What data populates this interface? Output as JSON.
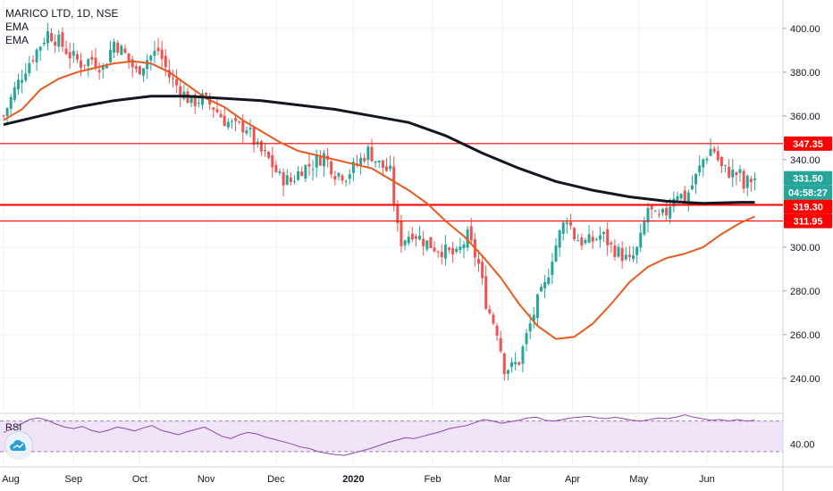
{
  "legend": {
    "symbol": "MARICO LTD, 1D, NSE",
    "ema1": "EMA",
    "ema2": "EMA"
  },
  "rsi_label": "RSI",
  "logo_icon": "tradingview-cloud-icon",
  "colors": {
    "up": "#26a69a",
    "down": "#ef5350",
    "ema_long": "#131722",
    "ema_short": "#e65c1e",
    "hline": "#ff0000",
    "rsi_line": "#8e44ad",
    "rsi_band": "#ead9f7"
  },
  "chart_data": [
    {
      "type": "candlestick",
      "title": "MARICO LTD, 1D, NSE",
      "x_tick_labels": [
        "Aug",
        "Sep",
        "Oct",
        "Nov",
        "Dec",
        "2020",
        "Feb",
        "Mar",
        "Apr",
        "May",
        "Jun"
      ],
      "y_tick_labels": [
        "400.00",
        "380.00",
        "360.00",
        "340.00",
        "320.00",
        "300.00",
        "280.00",
        "260.00",
        "240.00"
      ],
      "y_ticks": [
        400,
        380,
        360,
        340,
        320,
        300,
        280,
        260,
        240
      ],
      "ylim": [
        224,
        413
      ],
      "price_labels": [
        {
          "text": "347.35",
          "value": 347.35,
          "color": "#ff0000",
          "line": true
        },
        {
          "text": "331.50",
          "value": 331.5,
          "color": "#26a69a",
          "line": false
        },
        {
          "text": "04:58:27",
          "value": 325.3,
          "color": "#26a69a",
          "line": false
        },
        {
          "text": "319.30",
          "value": 319.3,
          "color": "#ff0000",
          "line": true
        },
        {
          "text": "311.95",
          "value": 311.95,
          "color": "#ff0000",
          "line": true
        }
      ],
      "close_path": [
        [
          0,
          360
        ],
        [
          6,
          372
        ],
        [
          12,
          382
        ],
        [
          18,
          390
        ],
        [
          24,
          398
        ],
        [
          30,
          394
        ],
        [
          36,
          388
        ],
        [
          42,
          384
        ],
        [
          48,
          386
        ],
        [
          54,
          382
        ],
        [
          60,
          394
        ],
        [
          66,
          388
        ],
        [
          72,
          380
        ],
        [
          78,
          386
        ],
        [
          84,
          390
        ],
        [
          90,
          378
        ],
        [
          96,
          372
        ],
        [
          102,
          366
        ],
        [
          108,
          368
        ],
        [
          114,
          364
        ],
        [
          120,
          358
        ],
        [
          126,
          355
        ],
        [
          132,
          355
        ],
        [
          138,
          345
        ],
        [
          144,
          340
        ],
        [
          150,
          332
        ],
        [
          156,
          330
        ],
        [
          162,
          336
        ],
        [
          168,
          338
        ],
        [
          174,
          342
        ],
        [
          180,
          334
        ],
        [
          186,
          333
        ],
        [
          192,
          338
        ],
        [
          198,
          344
        ],
        [
          204,
          338
        ],
        [
          210,
          334
        ],
        [
          215,
          302
        ],
        [
          222,
          307
        ],
        [
          228,
          303
        ],
        [
          234,
          300
        ],
        [
          240,
          298
        ],
        [
          246,
          296
        ],
        [
          252,
          305
        ],
        [
          258,
          292
        ],
        [
          262,
          275
        ],
        [
          264,
          270
        ],
        [
          268,
          262
        ],
        [
          272,
          245
        ],
        [
          276,
          245
        ],
        [
          280,
          248
        ],
        [
          285,
          262
        ],
        [
          290,
          275
        ],
        [
          294,
          282
        ],
        [
          298,
          296
        ],
        [
          302,
          306
        ],
        [
          306,
          314
        ],
        [
          310,
          305
        ],
        [
          315,
          302
        ],
        [
          320,
          303
        ],
        [
          325,
          306
        ],
        [
          330,
          300
        ],
        [
          335,
          297
        ],
        [
          340,
          293
        ],
        [
          345,
          300
        ],
        [
          350,
          318
        ],
        [
          355,
          312
        ],
        [
          360,
          316
        ],
        [
          365,
          326
        ],
        [
          370,
          322
        ],
        [
          375,
          330
        ],
        [
          380,
          340
        ],
        [
          385,
          346
        ],
        [
          390,
          336
        ],
        [
          395,
          334
        ],
        [
          400,
          333
        ],
        [
          402,
          327
        ],
        [
          404,
          330
        ],
        [
          408,
          331.5
        ]
      ],
      "ema_short": [
        [
          0,
          358
        ],
        [
          10,
          363
        ],
        [
          20,
          372
        ],
        [
          30,
          377
        ],
        [
          40,
          380
        ],
        [
          50,
          382
        ],
        [
          60,
          384
        ],
        [
          70,
          385
        ],
        [
          80,
          384
        ],
        [
          90,
          380
        ],
        [
          100,
          374
        ],
        [
          110,
          368
        ],
        [
          120,
          364
        ],
        [
          130,
          358
        ],
        [
          140,
          353
        ],
        [
          150,
          348
        ],
        [
          160,
          344
        ],
        [
          170,
          342
        ],
        [
          180,
          340
        ],
        [
          190,
          338
        ],
        [
          200,
          336
        ],
        [
          210,
          331
        ],
        [
          220,
          326
        ],
        [
          230,
          320
        ],
        [
          240,
          312
        ],
        [
          250,
          305
        ],
        [
          260,
          296
        ],
        [
          270,
          286
        ],
        [
          280,
          274
        ],
        [
          290,
          264
        ],
        [
          300,
          258
        ],
        [
          310,
          259
        ],
        [
          320,
          265
        ],
        [
          330,
          274
        ],
        [
          340,
          284
        ],
        [
          350,
          291
        ],
        [
          360,
          295
        ],
        [
          370,
          297
        ],
        [
          380,
          300
        ],
        [
          390,
          306
        ],
        [
          400,
          311
        ],
        [
          408,
          314
        ]
      ],
      "ema_long": [
        [
          0,
          356
        ],
        [
          20,
          360
        ],
        [
          40,
          364
        ],
        [
          60,
          367
        ],
        [
          80,
          369
        ],
        [
          100,
          369
        ],
        [
          120,
          368
        ],
        [
          140,
          367
        ],
        [
          160,
          365
        ],
        [
          180,
          363
        ],
        [
          200,
          360
        ],
        [
          220,
          357
        ],
        [
          240,
          351
        ],
        [
          260,
          343
        ],
        [
          280,
          336
        ],
        [
          300,
          330
        ],
        [
          320,
          326
        ],
        [
          340,
          323
        ],
        [
          360,
          321
        ],
        [
          380,
          320
        ],
        [
          400,
          320.5
        ],
        [
          408,
          320.5
        ]
      ]
    },
    {
      "type": "line",
      "name": "RSI",
      "y_tick_labels": [
        "40.00"
      ],
      "band": [
        30,
        70
      ],
      "ylim": [
        10,
        80
      ],
      "values": [
        55,
        60,
        66,
        72,
        74,
        71,
        66,
        62,
        60,
        63,
        58,
        55,
        58,
        62,
        60,
        57,
        61,
        64,
        58,
        55,
        52,
        56,
        59,
        62,
        56,
        50,
        47,
        52,
        55,
        53,
        49,
        46,
        43,
        40,
        36,
        34,
        30,
        28,
        26,
        25,
        28,
        31,
        34,
        38,
        42,
        45,
        48,
        47,
        50,
        53,
        56,
        60,
        62,
        64,
        68,
        72,
        70,
        67,
        69,
        71,
        74,
        75,
        71,
        70,
        72,
        74,
        75,
        76,
        74,
        73,
        75,
        73,
        71,
        70,
        72,
        74,
        73,
        75,
        78,
        75,
        73,
        71,
        72,
        70,
        72,
        70,
        71
      ]
    }
  ]
}
